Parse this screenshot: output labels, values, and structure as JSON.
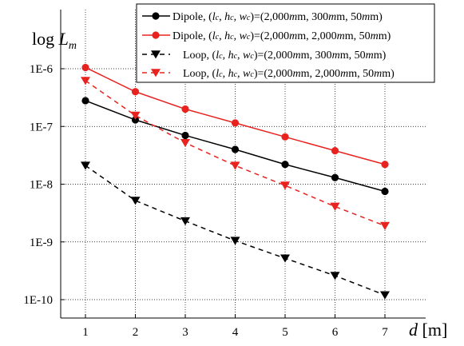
{
  "chart_data": {
    "type": "line",
    "title": "",
    "ylabel": {
      "text": "log L",
      "main": "log ",
      "var": "L",
      "sub": "m"
    },
    "xlabel": {
      "text": "d [m]",
      "var": "d",
      "unit": " [m]"
    },
    "scale": {
      "y": "log"
    },
    "xlim": [
      0.2,
      7.5
    ],
    "ylim": [
      1e-10,
      1e-06
    ],
    "x": [
      1,
      2,
      3,
      4,
      5,
      6,
      7
    ],
    "x_ticks": [
      "1",
      "2",
      "3",
      "4",
      "5",
      "6",
      "7"
    ],
    "y_ticks": [
      {
        "value": 1e-06,
        "label": "1E-6"
      },
      {
        "value": 1e-07,
        "label": "1E-7"
      },
      {
        "value": 1e-08,
        "label": "1E-8"
      },
      {
        "value": 1e-09,
        "label": "1E-9"
      },
      {
        "value": 1e-10,
        "label": "1E-10"
      }
    ],
    "grid": "dotted, both axes",
    "legend_position": "top-right",
    "series": [
      {
        "name": "Dipole, (lc, hc, wc)=(2,000mm, 300mm, 50mm)",
        "kind": "Dipole",
        "l": "2,000",
        "h": "300",
        "w": "50",
        "color": "#000000",
        "dash": "solid",
        "marker": "circle",
        "values": [
          2.8e-07,
          1.3e-07,
          7e-08,
          4e-08,
          2.2e-08,
          1.3e-08,
          7.5e-09
        ]
      },
      {
        "name": "Dipole, (lc, hc, wc)=(2,000mm, 2,000mm, 50mm)",
        "kind": "Dipole",
        "l": "2,000",
        "h": "2,000",
        "w": "50",
        "color": "#e8231f",
        "dash": "solid",
        "marker": "circle",
        "values": [
          1.05e-06,
          4e-07,
          2e-07,
          1.15e-07,
          6.6e-08,
          3.8e-08,
          2.2e-08
        ]
      },
      {
        "name": "Loop, (lc, hc, wc)=(2,000mm, 300mm, 50mm)",
        "kind": "Loop",
        "l": "2,000",
        "h": "300",
        "w": "50",
        "color": "#000000",
        "dash": "dashed",
        "marker": "triangle-down",
        "values": [
          2.1e-08,
          5.2e-09,
          2.3e-09,
          1.05e-09,
          5.2e-10,
          2.6e-10,
          1.2e-10
        ]
      },
      {
        "name": "Loop, (lc, hc, wc)=(2,000mm, 2,000mm, 50mm)",
        "kind": "Loop",
        "l": "2,000",
        "h": "2,000",
        "w": "50",
        "color": "#e8231f",
        "dash": "dashed",
        "marker": "triangle-down",
        "values": [
          6.2e-07,
          1.55e-07,
          5.2e-08,
          2.1e-08,
          9.5e-09,
          4.1e-09,
          1.9e-09
        ]
      }
    ]
  }
}
